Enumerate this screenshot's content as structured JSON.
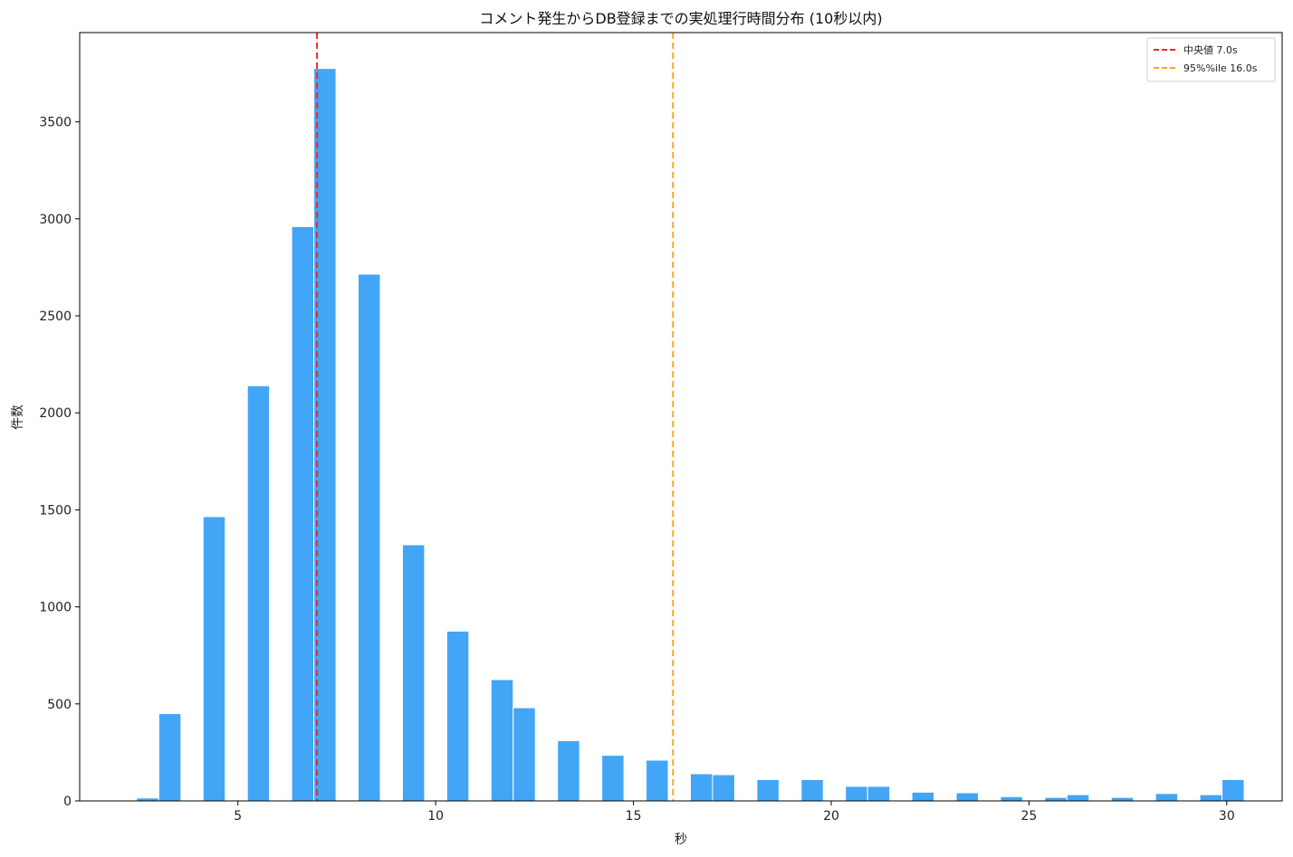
{
  "chart_data": {
    "type": "bar",
    "title": "コメント発生からDB登録までの実処理行時間分布 (10秒以内)",
    "xlabel": "秒",
    "ylabel": "件数",
    "xlim": [
      1.0,
      31.4
    ],
    "ylim": [
      0,
      3960
    ],
    "xticks": [
      5,
      10,
      15,
      20,
      25,
      30
    ],
    "yticks": [
      0,
      500,
      1000,
      1500,
      2000,
      2500,
      3000,
      3500
    ],
    "bar_color": "#42a5f5",
    "bins": [
      {
        "x0": 2.44,
        "x1": 3.0,
        "count": 15
      },
      {
        "x0": 3.0,
        "x1": 3.56,
        "count": 450
      },
      {
        "x0": 4.12,
        "x1": 4.68,
        "count": 1465
      },
      {
        "x0": 5.24,
        "x1": 5.8,
        "count": 2140
      },
      {
        "x0": 6.36,
        "x1": 6.92,
        "count": 2960
      },
      {
        "x0": 6.92,
        "x1": 7.48,
        "count": 3775
      },
      {
        "x0": 8.04,
        "x1": 8.6,
        "count": 2715
      },
      {
        "x0": 9.16,
        "x1": 9.72,
        "count": 1320
      },
      {
        "x0": 10.28,
        "x1": 10.84,
        "count": 875
      },
      {
        "x0": 11.4,
        "x1": 11.96,
        "count": 625
      },
      {
        "x0": 11.96,
        "x1": 12.52,
        "count": 480
      },
      {
        "x0": 13.08,
        "x1": 13.64,
        "count": 310
      },
      {
        "x0": 14.2,
        "x1": 14.76,
        "count": 235
      },
      {
        "x0": 15.32,
        "x1": 15.88,
        "count": 210
      },
      {
        "x0": 16.44,
        "x1": 17.0,
        "count": 140
      },
      {
        "x0": 17.0,
        "x1": 17.56,
        "count": 135
      },
      {
        "x0": 18.12,
        "x1": 18.68,
        "count": 110
      },
      {
        "x0": 19.24,
        "x1": 19.8,
        "count": 110
      },
      {
        "x0": 20.36,
        "x1": 20.92,
        "count": 75
      },
      {
        "x0": 20.92,
        "x1": 21.48,
        "count": 75
      },
      {
        "x0": 22.04,
        "x1": 22.6,
        "count": 45
      },
      {
        "x0": 23.16,
        "x1": 23.72,
        "count": 42
      },
      {
        "x0": 24.28,
        "x1": 24.84,
        "count": 22
      },
      {
        "x0": 25.4,
        "x1": 25.96,
        "count": 18
      },
      {
        "x0": 25.96,
        "x1": 26.52,
        "count": 32
      },
      {
        "x0": 27.08,
        "x1": 27.64,
        "count": 18
      },
      {
        "x0": 28.2,
        "x1": 28.76,
        "count": 38
      },
      {
        "x0": 29.32,
        "x1": 29.88,
        "count": 32
      },
      {
        "x0": 29.88,
        "x1": 30.44,
        "count": 110
      }
    ],
    "reference_lines": [
      {
        "label": "中央値 7.0s",
        "x": 7.0,
        "color": "#f02828",
        "style": "dashed"
      },
      {
        "label": "95%%ile 16.0s",
        "x": 16.0,
        "color": "#fba62a",
        "style": "dashed"
      }
    ],
    "legend_position": "top-right"
  }
}
